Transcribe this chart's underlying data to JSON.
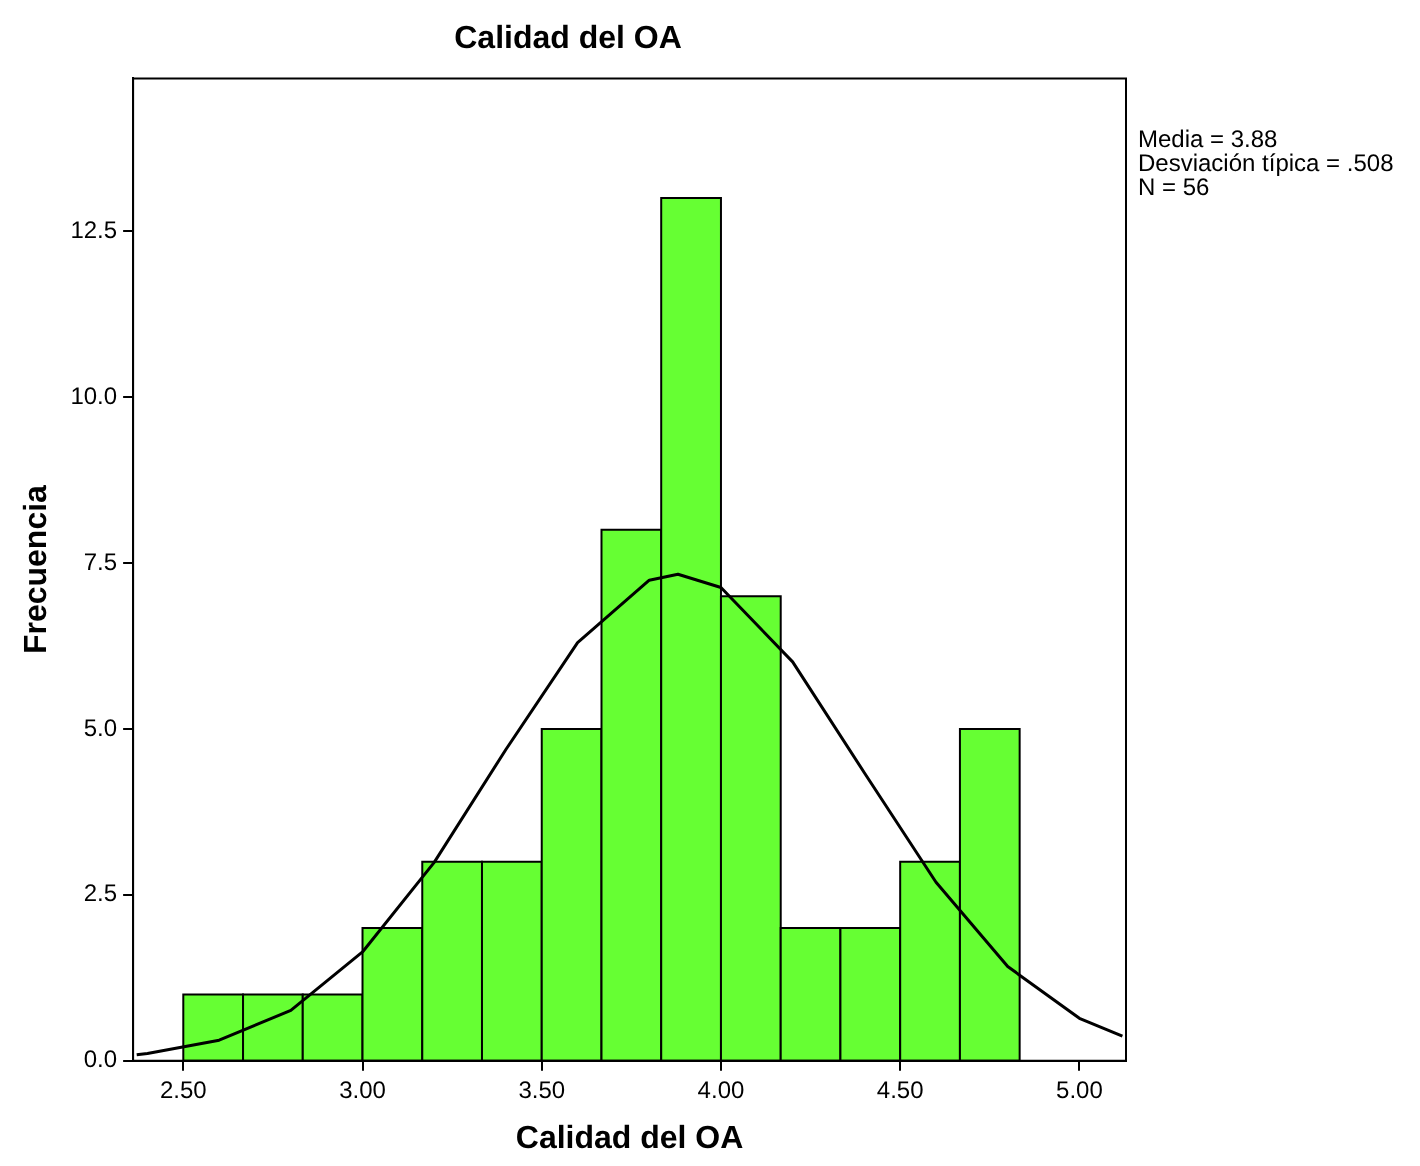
{
  "chart_data": {
    "type": "histogram",
    "title": "Calidad del OA",
    "xlabel": "Calidad del OA",
    "ylabel": "Frecuencia",
    "bins": [
      2.5,
      2.6667,
      2.8333,
      3.0,
      3.1667,
      3.3333,
      3.5,
      3.6667,
      3.8333,
      4.0,
      4.1667,
      4.3333,
      4.5,
      4.6667,
      4.8333
    ],
    "values": [
      1,
      1,
      1,
      2,
      3,
      3,
      5,
      8,
      13,
      7,
      2,
      2,
      3,
      5
    ],
    "color": "#66ff33",
    "series": [
      {
        "type": "line",
        "color": "#000000",
        "x": [
          2.37,
          2.4,
          2.6,
          2.8,
          3.0,
          3.2,
          3.4,
          3.6,
          3.8,
          3.88,
          4.0,
          4.2,
          4.4,
          4.6,
          4.8,
          5.0,
          5.12
        ],
        "values": [
          0.09,
          0.11,
          0.31,
          0.76,
          1.64,
          2.99,
          4.69,
          6.3,
          7.24,
          7.33,
          7.13,
          6.01,
          4.34,
          2.69,
          1.42,
          0.64,
          0.37
        ]
      }
    ],
    "xlim": [
      2.36,
      5.13
    ],
    "ylim": [
      0,
      14.8
    ],
    "xticks": [
      {
        "value": 2.5,
        "label": "2.50"
      },
      {
        "value": 3,
        "label": "3.00"
      },
      {
        "value": 3.5,
        "label": "3.50"
      },
      {
        "value": 4,
        "label": "4.00"
      },
      {
        "value": 4.5,
        "label": "4.50"
      },
      {
        "value": 5,
        "label": "5.00"
      }
    ],
    "yticks": [
      {
        "value": 0,
        "label": "0.0"
      },
      2.5,
      {
        "value": 5,
        "label": "5.0"
      },
      7.5,
      {
        "value": 10,
        "label": "10.0"
      },
      12.5
    ],
    "annotations": [
      "Media = 3.88",
      "Desviación típica = .508",
      "N = 56"
    ],
    "grid": false,
    "legend": false
  }
}
